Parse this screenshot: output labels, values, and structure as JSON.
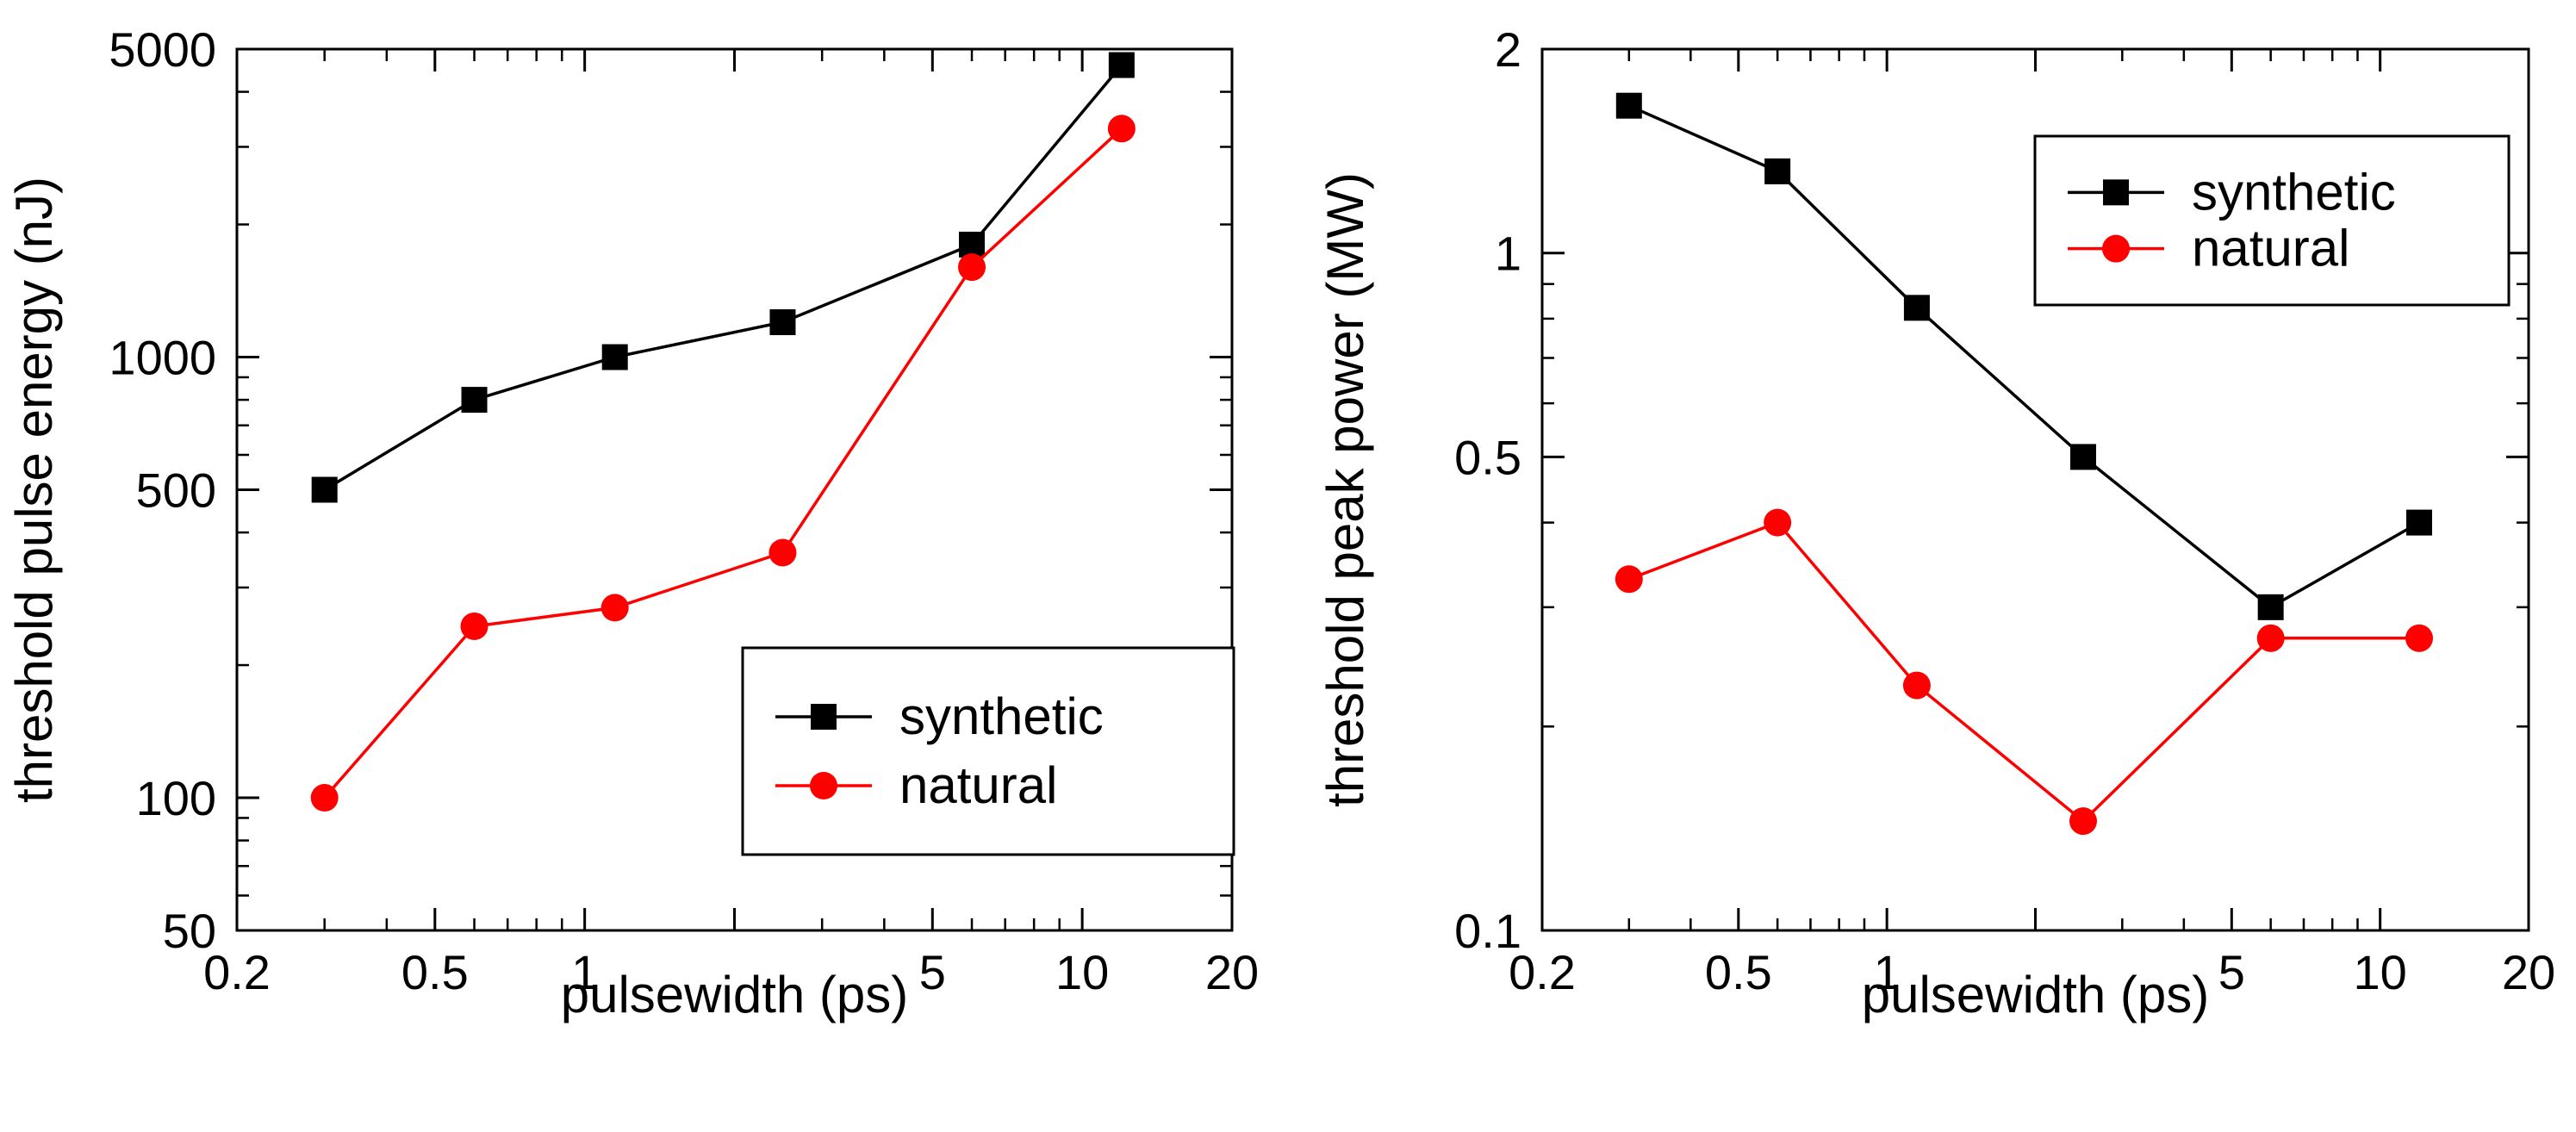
{
  "chart_data": [
    {
      "type": "line",
      "xscale": "log",
      "yscale": "log",
      "xlabel": "pulsewidth (ps)",
      "ylabel": "threshold pulse energy (nJ)",
      "xlim": [
        0.2,
        20
      ],
      "ylim": [
        50,
        5000
      ],
      "xticks": [
        0.2,
        0.5,
        1,
        2,
        5,
        10,
        20
      ],
      "xtick_labels": [
        "0.2",
        "0.5",
        "1",
        "",
        "5",
        "10",
        "20"
      ],
      "yticks": [
        50,
        100,
        500,
        1000,
        5000
      ],
      "ytick_labels": [
        "50",
        "100",
        "500",
        "1000",
        "5000"
      ],
      "legend_position": "bottom-right",
      "series": [
        {
          "name": "synthetic",
          "color": "#000000",
          "marker": "square",
          "x": [
            0.3,
            0.6,
            1.15,
            2.5,
            6,
            12
          ],
          "y": [
            500,
            800,
            1000,
            1200,
            1800,
            4600
          ]
        },
        {
          "name": "natural",
          "color": "#ff0000",
          "marker": "circle",
          "x": [
            0.3,
            0.6,
            1.15,
            2.5,
            6,
            12
          ],
          "y": [
            100,
            245,
            270,
            360,
            1600,
            3300
          ]
        }
      ]
    },
    {
      "type": "line",
      "xscale": "log",
      "yscale": "log",
      "xlabel": "pulsewidth (ps)",
      "ylabel": "threshold peak power (MW)",
      "xlim": [
        0.2,
        20
      ],
      "ylim": [
        0.1,
        2
      ],
      "xticks": [
        0.2,
        0.5,
        1,
        2,
        5,
        10,
        20
      ],
      "xtick_labels": [
        "0.2",
        "0.5",
        "1",
        "",
        "5",
        "10",
        "20"
      ],
      "yticks": [
        0.1,
        0.5,
        1,
        2
      ],
      "ytick_labels": [
        "0.1",
        "0.5",
        "1",
        "2"
      ],
      "legend_position": "top-right",
      "series": [
        {
          "name": "synthetic",
          "color": "#000000",
          "marker": "square",
          "x": [
            0.3,
            0.6,
            1.15,
            2.5,
            6,
            12
          ],
          "y": [
            1.65,
            1.32,
            0.83,
            0.5,
            0.3,
            0.4
          ]
        },
        {
          "name": "natural",
          "color": "#ff0000",
          "marker": "circle",
          "x": [
            0.3,
            0.6,
            1.15,
            2.5,
            6,
            12
          ],
          "y": [
            0.33,
            0.4,
            0.23,
            0.145,
            0.27,
            0.27
          ]
        }
      ]
    }
  ]
}
